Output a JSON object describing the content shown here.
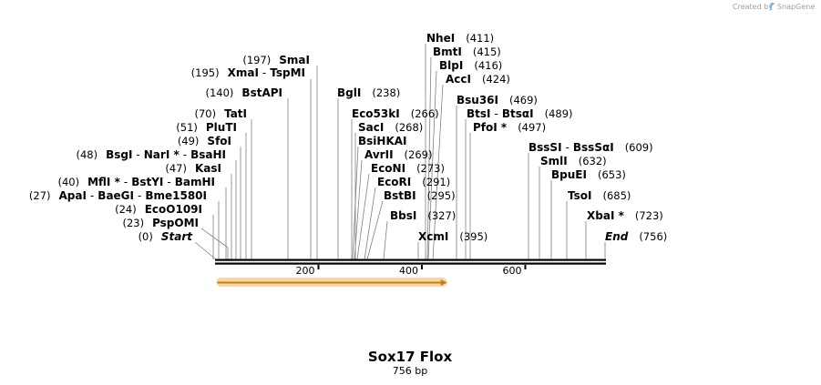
{
  "credit": {
    "prefix": "Created by",
    "brand": "SnapGene"
  },
  "title": "Sox17 Flox",
  "subtitle": "756 bp",
  "seq_length": 756,
  "ticks": [
    {
      "pos": 200,
      "label": "200"
    },
    {
      "pos": 400,
      "label": "400"
    },
    {
      "pos": 600,
      "label": "600"
    }
  ],
  "feature": {
    "start": 1,
    "end": 447,
    "color": "#f4c98a",
    "arrow_color": "#c77f16"
  },
  "start_label": {
    "pos_text": "(0)",
    "name": "Start"
  },
  "end_label": {
    "name": "End",
    "pos_text": "(756)"
  },
  "left_labels": [
    {
      "pos_text": "(197)",
      "names": [
        "SmaI"
      ]
    },
    {
      "pos_text": "(195)",
      "names": [
        "XmaI",
        "TspMI"
      ]
    },
    {
      "pos_text": "(140)",
      "names": [
        "BstAPI"
      ]
    },
    {
      "pos_text": "(70)",
      "names": [
        "TatI"
      ]
    },
    {
      "pos_text": "(51)",
      "names": [
        "PluTI"
      ]
    },
    {
      "pos_text": "(49)",
      "names": [
        "SfoI"
      ]
    },
    {
      "pos_text": "(48)",
      "names": [
        "BsgI",
        "NarI *",
        "BsaHI"
      ]
    },
    {
      "pos_text": "(47)",
      "names": [
        "KasI"
      ]
    },
    {
      "pos_text": "(40)",
      "names": [
        "MflI *",
        "BstYI",
        "BamHI"
      ]
    },
    {
      "pos_text": "(27)",
      "names": [
        "ApaI",
        "BaeGI",
        "Bme1580I"
      ]
    },
    {
      "pos_text": "(24)",
      "names": [
        "EcoO109I"
      ]
    },
    {
      "pos_text": "(23)",
      "names": [
        "PspOMI"
      ]
    }
  ],
  "right_labels": [
    {
      "names": [
        "BglI"
      ],
      "pos_text": "(238)"
    },
    {
      "names": [
        "Eco53kI"
      ],
      "pos_text": "(266)"
    },
    {
      "names": [
        "SacI"
      ],
      "pos_text": "(268)"
    },
    {
      "names": [
        "BsiHKAI"
      ],
      "pos_text": ""
    },
    {
      "names": [
        "AvrII"
      ],
      "pos_text": "(269)"
    },
    {
      "names": [
        "EcoNI"
      ],
      "pos_text": "(273)"
    },
    {
      "names": [
        "EcoRI"
      ],
      "pos_text": "(291)"
    },
    {
      "names": [
        "BstBI"
      ],
      "pos_text": "(295)"
    },
    {
      "names": [
        "BbsI"
      ],
      "pos_text": "(327)"
    },
    {
      "names": [
        "NheI"
      ],
      "pos_text": "(411)"
    },
    {
      "names": [
        "BmtI"
      ],
      "pos_text": "(415)"
    },
    {
      "names": [
        "BlpI"
      ],
      "pos_text": "(416)"
    },
    {
      "names": [
        "AccI"
      ],
      "pos_text": "(424)"
    },
    {
      "names": [
        "XcmI"
      ],
      "pos_text": "(395)"
    },
    {
      "names": [
        "Bsu36I"
      ],
      "pos_text": "(469)"
    },
    {
      "names": [
        "BtsI",
        "BtsαI"
      ],
      "pos_text": "(489)"
    },
    {
      "names": [
        "PfoI *"
      ],
      "pos_text": "(497)"
    },
    {
      "names": [
        "BssSI",
        "BssSαI"
      ],
      "pos_text": "(609)"
    },
    {
      "names": [
        "SmlI"
      ],
      "pos_text": "(632)"
    },
    {
      "names": [
        "BpuEI"
      ],
      "pos_text": "(653)"
    },
    {
      "names": [
        "TsoI"
      ],
      "pos_text": "(685)"
    },
    {
      "names": [
        "XbaI *"
      ],
      "pos_text": "(723)"
    }
  ]
}
